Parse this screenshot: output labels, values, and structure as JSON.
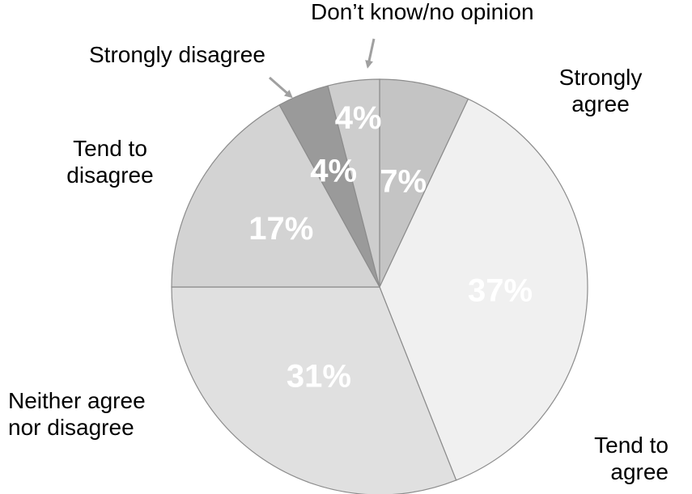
{
  "chart_data": {
    "type": "pie",
    "title": "",
    "slices": [
      {
        "label": "Strongly agree",
        "lines": [
          "Strongly",
          "agree"
        ],
        "value": 7,
        "display": "7%",
        "color": "#c4c4c4"
      },
      {
        "label": "Tend to agree",
        "lines": [
          "Tend to",
          "agree"
        ],
        "value": 37,
        "display": "37%",
        "color": "#f0f0f0"
      },
      {
        "label": "Neither agree nor disagree",
        "lines": [
          "Neither agree",
          "nor disagree"
        ],
        "value": 31,
        "display": "31%",
        "color": "#e0e0e0"
      },
      {
        "label": "Tend to disagree",
        "lines": [
          "Tend to",
          "disagree"
        ],
        "value": 17,
        "display": "17%",
        "color": "#d3d3d3"
      },
      {
        "label": "Strongly disagree",
        "lines": [
          "Strongly disagree"
        ],
        "value": 4,
        "display": "4%",
        "color": "#9a9a9a"
      },
      {
        "label": "Don’t know/no opinion",
        "lines": [
          "Don’t know/no opinion"
        ],
        "value": 4,
        "display": "4%",
        "color": "#cdcdcd"
      }
    ],
    "start_angle": "12 o'clock",
    "direction": "clockwise",
    "legend": "none",
    "arrow_color": "#a0a0a0"
  }
}
